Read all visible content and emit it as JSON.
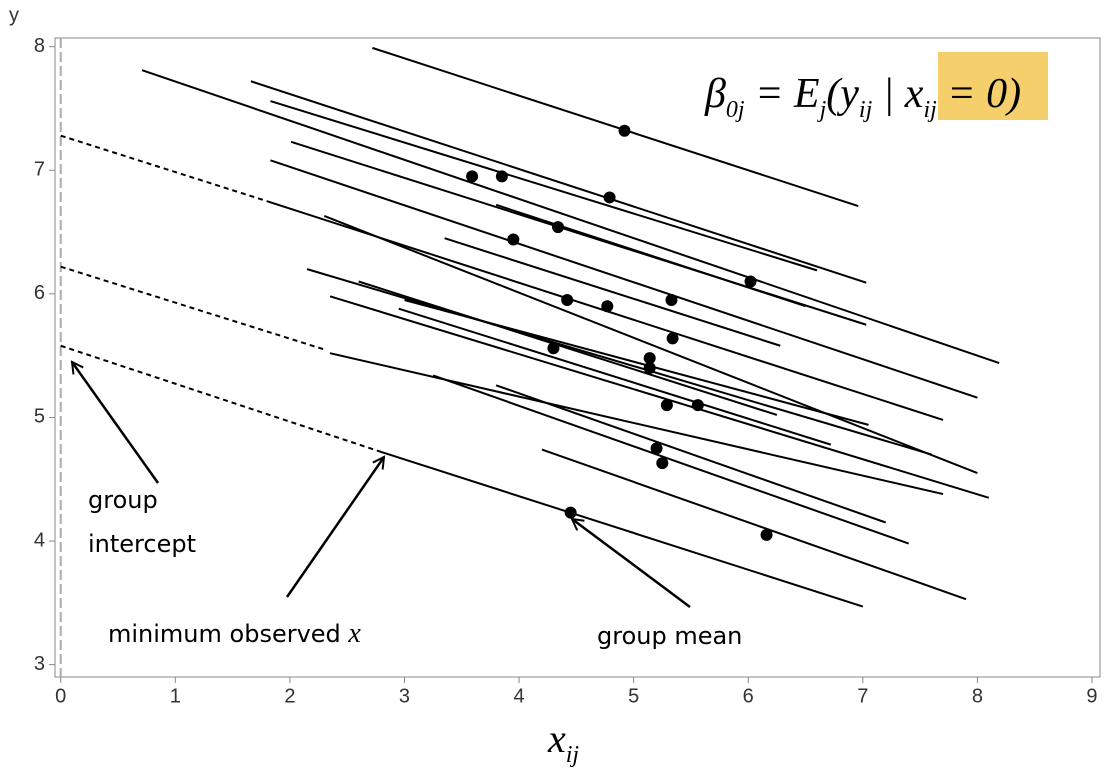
{
  "chart_data": {
    "type": "line",
    "y_label": "y",
    "x_label": {
      "text": "x",
      "sub": "ij"
    },
    "xlim": [
      -0.05,
      9.07
    ],
    "ylim": [
      2.9,
      8.07
    ],
    "xticks": [
      0,
      1,
      2,
      3,
      4,
      5,
      6,
      7,
      8,
      9
    ],
    "yticks": [
      3,
      4,
      5,
      6,
      7,
      8
    ],
    "reference_line": {
      "x": 0,
      "color": "#aaaaaa"
    },
    "color": "#000000",
    "lines": [
      {
        "x": [
          2.72,
          6.96
        ],
        "y": [
          7.99,
          6.71
        ],
        "style": "solid"
      },
      {
        "x": [
          0.71,
          8.19
        ],
        "y": [
          7.81,
          5.44
        ],
        "style": "solid"
      },
      {
        "x": [
          1.66,
          7.03
        ],
        "y": [
          7.72,
          6.09
        ],
        "style": "solid"
      },
      {
        "x": [
          1.83,
          6.6
        ],
        "y": [
          7.56,
          6.19
        ],
        "style": "solid"
      },
      {
        "x": [
          2.01,
          7.03
        ],
        "y": [
          7.23,
          5.75
        ],
        "style": "solid"
      },
      {
        "x": [
          1.83,
          8.0
        ],
        "y": [
          7.08,
          5.16
        ],
        "style": "solid"
      },
      {
        "x": [
          0,
          1.8
        ],
        "y": [
          7.28,
          6.75
        ],
        "style": "dashed"
      },
      {
        "x": [
          1.8,
          7.7
        ],
        "y": [
          6.75,
          4.98
        ],
        "style": "solid"
      },
      {
        "x": [
          3.35,
          6.28
        ],
        "y": [
          6.45,
          5.58
        ],
        "style": "solid"
      },
      {
        "x": [
          3.8,
          6.5
        ],
        "y": [
          6.72,
          5.9
        ],
        "style": "solid"
      },
      {
        "x": [
          2.3,
          8.0
        ],
        "y": [
          6.63,
          4.55
        ],
        "style": "solid"
      },
      {
        "x": [
          2.15,
          7.6
        ],
        "y": [
          6.2,
          4.7
        ],
        "style": "solid"
      },
      {
        "x": [
          2.6,
          6.25
        ],
        "y": [
          6.1,
          5.02
        ],
        "style": "solid"
      },
      {
        "x": [
          2.35,
          8.1
        ],
        "y": [
          5.98,
          4.35
        ],
        "style": "solid"
      },
      {
        "x": [
          3.0,
          7.05
        ],
        "y": [
          5.95,
          4.94
        ],
        "style": "solid"
      },
      {
        "x": [
          2.95,
          6.72
        ],
        "y": [
          5.88,
          4.78
        ],
        "style": "solid"
      },
      {
        "x": [
          0,
          2.3
        ],
        "y": [
          6.22,
          5.55
        ],
        "style": "dashed"
      },
      {
        "x": [
          2.35,
          7.7
        ],
        "y": [
          5.52,
          4.38
        ],
        "style": "solid"
      },
      {
        "x": [
          3.25,
          7.4
        ],
        "y": [
          5.34,
          3.98
        ],
        "style": "solid"
      },
      {
        "x": [
          3.8,
          7.2
        ],
        "y": [
          5.26,
          4.15
        ],
        "style": "solid"
      },
      {
        "x": [
          4.2,
          7.9
        ],
        "y": [
          4.74,
          3.53
        ],
        "style": "solid"
      },
      {
        "x": [
          0,
          2.8
        ],
        "y": [
          5.58,
          4.72
        ],
        "style": "dashed"
      },
      {
        "x": [
          2.8,
          7.0
        ],
        "y": [
          4.72,
          3.47
        ],
        "style": "solid"
      }
    ],
    "group_means": {
      "x": [
        4.92,
        3.59,
        3.85,
        4.79,
        4.34,
        3.95,
        6.02,
        4.42,
        4.77,
        5.33,
        5.34,
        4.3,
        5.14,
        5.14,
        5.29,
        5.56,
        5.2,
        5.25,
        4.45,
        6.16
      ],
      "y": [
        7.32,
        6.95,
        6.95,
        6.78,
        6.54,
        6.44,
        6.1,
        5.95,
        5.9,
        5.95,
        5.64,
        5.56,
        5.48,
        5.4,
        5.1,
        5.1,
        4.75,
        4.63,
        4.23,
        4.05
      ]
    },
    "formula": [
      {
        "text": "β",
        "sub": "0j"
      },
      {
        "text": " = E",
        "sub": "j"
      },
      {
        "text": "(y",
        "sub": "ij"
      },
      {
        "text": " | "
      },
      {
        "text": "x",
        "sub": "ij"
      },
      {
        "text": " = 0)"
      }
    ],
    "annotations": {
      "intercept": [
        "group",
        "intercept"
      ],
      "minimum": {
        "text": "minimum observed ",
        "var": "x"
      },
      "mean": "group mean"
    }
  }
}
